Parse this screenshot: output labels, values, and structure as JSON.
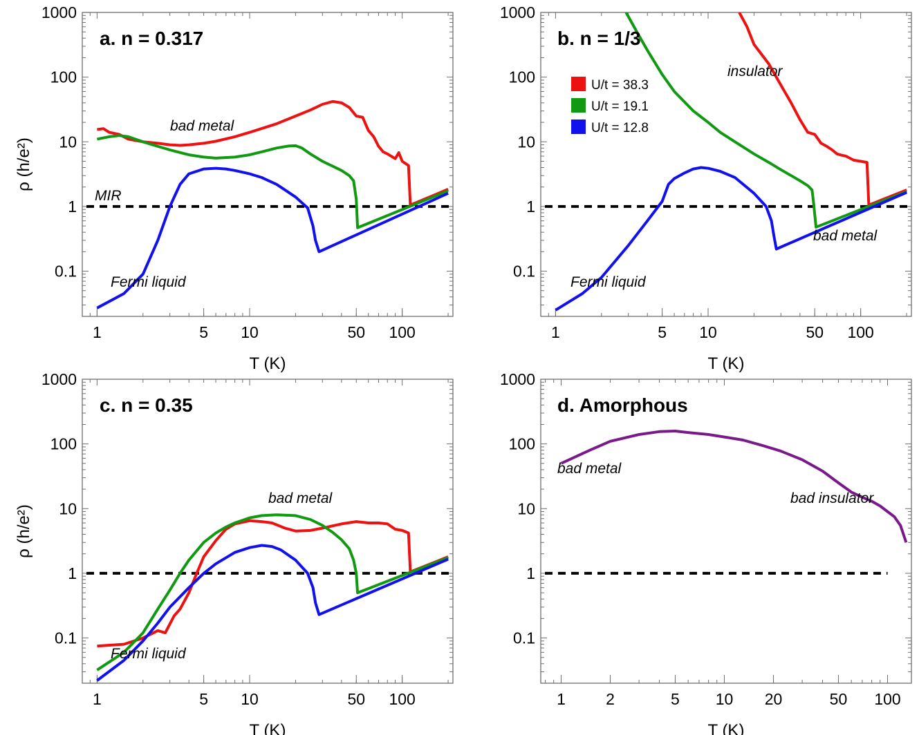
{
  "figure": {
    "ylabel": "ρ (h/e²)",
    "xlabel": "T (K)"
  },
  "chart_data": [
    {
      "panel": "a",
      "type": "line",
      "title": "a. n = 0.317",
      "xlabel": "T (K)",
      "ylabel": "ρ (h/e²)",
      "xscale": "log",
      "yscale": "log",
      "xlim": [
        0.8,
        215
      ],
      "ylim": [
        0.02,
        1000
      ],
      "xticks": [
        1,
        5,
        10,
        50,
        100
      ],
      "xtick_labels": [
        "1",
        "5",
        "10",
        "50",
        "100"
      ],
      "yticks": [
        0.1,
        1,
        10,
        100,
        1000
      ],
      "ytick_labels": [
        "0.1",
        "1",
        "10",
        "100",
        "1000"
      ],
      "reference_line": {
        "y": 1,
        "style": "dashed",
        "label": "MIR"
      },
      "annotations": [
        {
          "text": "bad metal",
          "x": 1.8,
          "y": 15
        },
        {
          "text": "MIR",
          "x": 0.97,
          "y": 1.3
        },
        {
          "text": "Fermi liquid",
          "x": 1.1,
          "y": 0.045
        }
      ],
      "series": [
        {
          "name": "U/t = 38.3",
          "color": "#ee1111",
          "x": [
            1.0,
            1.1,
            1.2,
            1.4,
            1.6,
            2.0,
            2.5,
            3.0,
            3.5,
            4.0,
            5.0,
            6.0,
            8.0,
            10.0,
            15.0,
            20.0,
            25.0,
            30.0,
            35.0,
            40.0,
            45.0,
            50.0,
            55.0,
            60.0,
            65.0,
            70.0,
            75.0,
            80.0,
            90.0,
            95.0,
            100.0,
            110.0,
            113.0,
            200.0
          ],
          "y": [
            15.5,
            16,
            14,
            13,
            11,
            10,
            9.5,
            9,
            8.8,
            9,
            9.5,
            10.2,
            12,
            14,
            19,
            25,
            31,
            38,
            42,
            40,
            34,
            25,
            24,
            15,
            12,
            8.5,
            7,
            6.5,
            5.5,
            6.8,
            5,
            4.3,
            1.05,
            1.85
          ]
        },
        {
          "name": "U/t = 19.1",
          "color": "#119911",
          "x": [
            1.0,
            1.2,
            1.4,
            1.6,
            2.0,
            2.5,
            3.0,
            4.0,
            5.0,
            6.0,
            8.0,
            10.0,
            12.0,
            15.0,
            18.0,
            20.0,
            22.0,
            25.0,
            30.0,
            35.0,
            40.0,
            45.0,
            48.0,
            50.0,
            51.0,
            200.0
          ],
          "y": [
            11,
            12,
            12.5,
            12,
            10,
            8.5,
            7.5,
            6.3,
            5.8,
            5.6,
            5.8,
            6.3,
            7,
            8,
            8.6,
            8.7,
            8,
            6.5,
            5,
            4.2,
            3.6,
            3.0,
            2.5,
            1.3,
            0.47,
            1.75
          ]
        },
        {
          "name": "U/t = 12.8",
          "color": "#1111ee",
          "x": [
            1.0,
            1.5,
            2.0,
            2.5,
            3.0,
            3.5,
            4.0,
            5.0,
            6.0,
            7.0,
            8.0,
            10.0,
            12.0,
            15.0,
            20.0,
            24.0,
            26.0,
            27.0,
            28.5,
            200.0
          ],
          "y": [
            0.027,
            0.045,
            0.09,
            0.3,
            1.0,
            2.2,
            3.2,
            3.8,
            3.9,
            3.8,
            3.6,
            3.2,
            2.8,
            2.2,
            1.4,
            0.95,
            0.5,
            0.3,
            0.2,
            1.6
          ]
        }
      ]
    },
    {
      "panel": "b",
      "type": "line",
      "title": "b. n = 1/3",
      "xlabel": "T (K)",
      "ylabel": "ρ (h/e²)",
      "xscale": "log",
      "yscale": "log",
      "xlim": [
        0.8,
        215
      ],
      "ylim": [
        0.02,
        1000
      ],
      "xticks": [
        1,
        5,
        10,
        50,
        100
      ],
      "xtick_labels": [
        "1",
        "5",
        "10",
        "50",
        "100"
      ],
      "yticks": [
        0.1,
        1,
        10,
        100,
        1000
      ],
      "ytick_labels": [
        "0.1",
        "1",
        "10",
        "100",
        "1000"
      ],
      "reference_line": {
        "y": 1,
        "style": "dashed"
      },
      "legend": {
        "position": "upper-left",
        "entries": [
          {
            "label": "U/t = 38.3",
            "color": "#ee1111"
          },
          {
            "label": "U/t = 19.1",
            "color": "#119911"
          },
          {
            "label": "U/t = 12.8",
            "color": "#1111ee"
          }
        ]
      },
      "annotations": [
        {
          "text": "insulator",
          "x": 12,
          "y": 110
        },
        {
          "text": "bad metal",
          "x": 68,
          "y": 0.28
        },
        {
          "text": "Fermi liquid",
          "x": 1.1,
          "y": 0.045
        }
      ],
      "series": [
        {
          "name": "U/t = 38.3",
          "color": "#ee1111",
          "x": [
            16.0,
            18.0,
            20.0,
            25.0,
            30.0,
            35.0,
            40.0,
            45.0,
            50.0,
            55.0,
            60.0,
            65.0,
            70.0,
            75.0,
            80.0,
            90.0,
            100.0,
            110.0,
            113.0,
            200.0
          ],
          "y": [
            1000,
            600,
            320,
            160,
            75,
            40,
            22,
            14,
            13,
            9.5,
            8.5,
            7.5,
            6.5,
            6.2,
            6.0,
            5.2,
            5.0,
            4.8,
            1.05,
            1.8
          ]
        },
        {
          "name": "U/t = 19.1",
          "color": "#119911",
          "x": [
            2.9,
            3.5,
            4.0,
            5.0,
            6.0,
            8.0,
            10.0,
            12.0,
            15.0,
            20.0,
            25.0,
            30.0,
            35.0,
            40.0,
            45.0,
            48.0,
            49.0,
            51.0,
            200.0
          ],
          "y": [
            1000,
            450,
            260,
            110,
            60,
            30,
            20,
            14,
            10,
            6.5,
            4.8,
            3.7,
            3.0,
            2.5,
            2.1,
            1.8,
            1.2,
            0.48,
            1.7
          ]
        },
        {
          "name": "U/t = 12.8",
          "color": "#1111ee",
          "x": [
            1.0,
            1.5,
            2.0,
            3.0,
            4.0,
            5.0,
            5.5,
            6.0,
            7.0,
            8.0,
            9.0,
            10.0,
            12.0,
            15.0,
            20.0,
            24.0,
            26.0,
            27.0,
            28.0,
            200.0
          ],
          "y": [
            0.025,
            0.045,
            0.08,
            0.25,
            0.6,
            1.2,
            2.2,
            2.7,
            3.3,
            3.8,
            4.0,
            3.9,
            3.5,
            2.8,
            1.6,
            1.0,
            0.6,
            0.35,
            0.22,
            1.65
          ]
        }
      ]
    },
    {
      "panel": "c",
      "type": "line",
      "title": "c. n = 0.35",
      "xlabel": "T (K)",
      "ylabel": "ρ (h/e²)",
      "xscale": "log",
      "yscale": "log",
      "xlim": [
        0.8,
        215
      ],
      "ylim": [
        0.02,
        1000
      ],
      "xticks": [
        1,
        5,
        10,
        50,
        100
      ],
      "xtick_labels": [
        "1",
        "5",
        "10",
        "50",
        "100"
      ],
      "yticks": [
        0.1,
        1,
        10,
        100,
        1000
      ],
      "ytick_labels": [
        "0.1",
        "1",
        "10",
        "100",
        "1000"
      ],
      "reference_line": {
        "y": 1,
        "style": "dashed"
      },
      "annotations": [
        {
          "text": "bad metal",
          "x": 14,
          "y": 12
        },
        {
          "text": "Fermi liquid",
          "x": 1.1,
          "y": 0.035
        }
      ],
      "series": [
        {
          "name": "U/t = 38.3",
          "color": "#ee1111",
          "x": [
            1.0,
            1.5,
            2.0,
            2.5,
            2.8,
            3.2,
            3.5,
            4.0,
            4.5,
            5.0,
            6.0,
            7.0,
            8.0,
            10.0,
            12.0,
            14.0,
            17.0,
            20.0,
            25.0,
            30.0,
            40.0,
            50.0,
            60.0,
            70.0,
            80.0,
            90.0,
            100.0,
            105.0,
            110.0,
            113.0,
            200.0
          ],
          "y": [
            0.075,
            0.08,
            0.1,
            0.13,
            0.12,
            0.22,
            0.28,
            0.5,
            1.0,
            1.8,
            3.2,
            4.8,
            5.8,
            6.5,
            6.3,
            6.0,
            5.0,
            4.5,
            4.6,
            5.0,
            5.8,
            6.3,
            6.0,
            6.0,
            5.8,
            4.8,
            4.6,
            4.4,
            4.2,
            1.05,
            1.8
          ]
        },
        {
          "name": "U/t = 19.1",
          "color": "#119911",
          "x": [
            1.0,
            1.5,
            2.0,
            2.5,
            3.0,
            3.5,
            4.0,
            5.0,
            6.0,
            7.0,
            8.0,
            10.0,
            12.0,
            15.0,
            20.0,
            25.0,
            30.0,
            35.0,
            40.0,
            45.0,
            48.0,
            50.0,
            51.0,
            200.0
          ],
          "y": [
            0.032,
            0.06,
            0.12,
            0.28,
            0.55,
            1.0,
            1.6,
            3.0,
            4.2,
            5.2,
            6.0,
            7.2,
            7.8,
            8.0,
            7.8,
            6.8,
            5.5,
            4.3,
            3.3,
            2.4,
            1.6,
            1.0,
            0.5,
            1.75
          ]
        },
        {
          "name": "U/t = 12.8",
          "color": "#1111ee",
          "x": [
            1.0,
            1.5,
            2.0,
            2.5,
            3.0,
            4.0,
            5.0,
            6.0,
            8.0,
            10.0,
            12.0,
            14.0,
            16.0,
            20.0,
            24.0,
            26.0,
            27.0,
            28.5,
            200.0
          ],
          "y": [
            0.022,
            0.045,
            0.09,
            0.17,
            0.3,
            0.6,
            1.0,
            1.4,
            2.1,
            2.5,
            2.7,
            2.6,
            2.3,
            1.6,
            1.0,
            0.6,
            0.35,
            0.23,
            1.65
          ]
        }
      ]
    },
    {
      "panel": "d",
      "type": "line",
      "title": "d. Amorphous",
      "xlabel": "T (K)",
      "ylabel": "ρ (h/e²)",
      "xscale": "log",
      "yscale": "log",
      "xlim": [
        0.75,
        140
      ],
      "ylim": [
        0.02,
        1000
      ],
      "xticks": [
        1,
        2,
        5,
        10,
        20,
        50,
        100
      ],
      "xtick_labels": [
        "1",
        "2",
        "5",
        "10",
        "20",
        "50",
        "100"
      ],
      "yticks": [
        0.1,
        1,
        10,
        100,
        1000
      ],
      "ytick_labels": [
        "0.1",
        "1",
        "10",
        "100",
        "1000"
      ],
      "reference_line": {
        "y": 1,
        "style": "dashed",
        "x_end": 100
      },
      "annotations": [
        {
          "text": "bad metal",
          "x": 0.98,
          "y": 30
        },
        {
          "text": "bad insulator",
          "x": 42,
          "y": 10
        }
      ],
      "series": [
        {
          "name": "Amorphous",
          "color": "#7a1a8a",
          "x": [
            1.0,
            1.5,
            2.0,
            3.0,
            4.0,
            5.0,
            6.0,
            8.0,
            10.0,
            13.0,
            17.0,
            22.0,
            30.0,
            40.0,
            50.0,
            60.0,
            70.0,
            80.0,
            90.0,
            100.0,
            110.0,
            120.0,
            130.0
          ],
          "y": [
            50,
            80,
            110,
            140,
            155,
            158,
            150,
            140,
            128,
            115,
            95,
            78,
            57,
            38,
            25,
            18,
            15,
            13,
            11,
            9,
            7.5,
            5.5,
            3.0
          ]
        }
      ]
    }
  ]
}
